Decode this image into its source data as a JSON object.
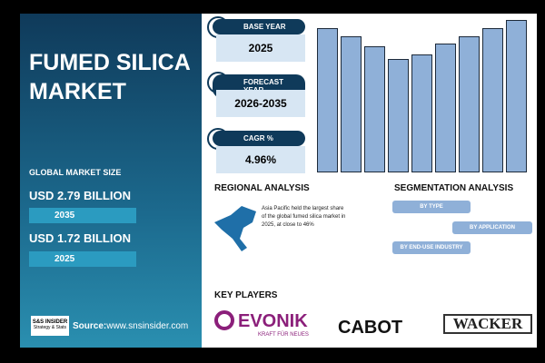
{
  "title": "FUMED SILICA MARKET",
  "market_size": {
    "label": "GLOBAL MARKET SIZE",
    "items": [
      {
        "value": "USD 2.79 BILLION",
        "year": "2035"
      },
      {
        "value": "USD 1.72 BILLION",
        "year": "2025"
      }
    ]
  },
  "source": {
    "logo": "S&S INSIDER",
    "logo_sub": "Strategy & Stats",
    "label": "Source:",
    "url": "www.snsinsider.com"
  },
  "cards": [
    {
      "label": "BASE YEAR",
      "value": "2025"
    },
    {
      "label": "FORECAST YEAR",
      "value": "2026-2035"
    },
    {
      "label": "CAGR %",
      "value": "4.96%"
    }
  ],
  "regional": {
    "title": "REGIONAL ANALYSIS",
    "text": "Asia Pacific held the largest share of the global fumed silica market in 2025, at close to 46%"
  },
  "segmentation": {
    "title": "SEGMENTATION ANALYSIS",
    "items": [
      "BY TYPE",
      "BY APPLICATION",
      "BY END-USE INDUSTRY"
    ]
  },
  "key_players": {
    "title": "KEY PLAYERS",
    "players": [
      {
        "name": "EVONIK",
        "tagline": "KRAFT FÜR NEUES"
      },
      {
        "name": "CABOT"
      },
      {
        "name": "WACKER"
      }
    ]
  }
}
